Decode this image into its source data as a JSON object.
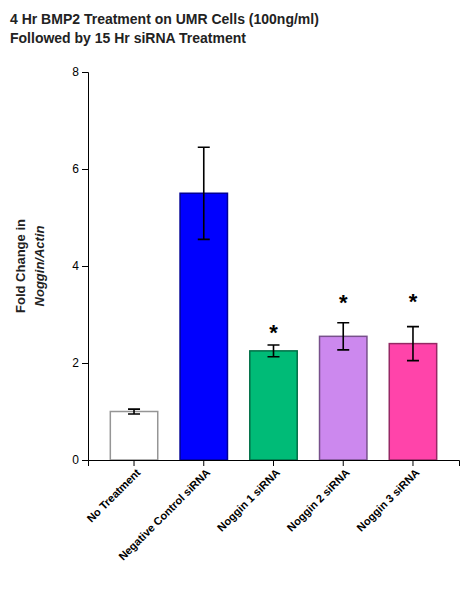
{
  "chart_data": {
    "type": "bar",
    "title": "4 Hr BMP2 Treatment on UMR Cells (100ng/ml)",
    "subtitle": "Followed by 15 Hr siRNA Treatment",
    "ylabel": [
      "Fold Change in ",
      "Noggin/Actin"
    ],
    "categories": [
      "No Treatment",
      "Negative Control siRNA",
      "Noggin 1 siRNA",
      "Noggin 2 siRNA",
      "Noggin 3 siRNA"
    ],
    "values": [
      1.0,
      5.5,
      2.25,
      2.55,
      2.4
    ],
    "errors": [
      0.05,
      0.95,
      0.12,
      0.28,
      0.35
    ],
    "colors": [
      "white",
      "#0000ff",
      "#00bb77",
      "#cc88ee",
      "#ff44aa"
    ],
    "ylim": [
      0,
      8
    ],
    "yticks": [
      0,
      2,
      4,
      6,
      8
    ],
    "grid": false,
    "annotations": [
      {
        "text": "*",
        "x": "Noggin 1 siRNA",
        "y": 2.55
      },
      {
        "text": "*",
        "x": "Noggin 2 siRNA",
        "y": 3.18
      },
      {
        "text": "*",
        "x": "Noggin 3 siRNA",
        "y": 3.2
      }
    ]
  }
}
